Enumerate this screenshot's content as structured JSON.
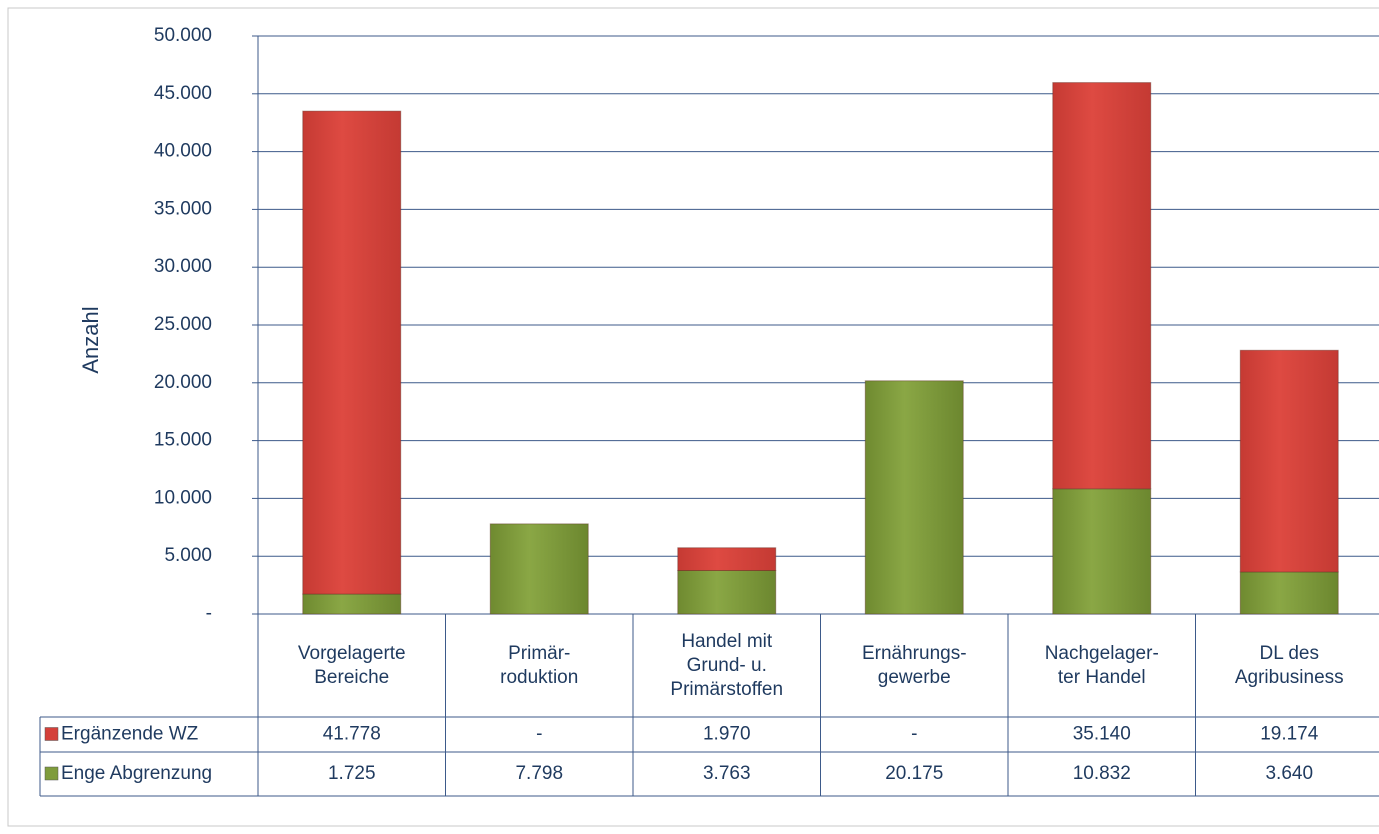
{
  "chart_data": {
    "type": "stacked-bar",
    "y_label": "Anzahl",
    "categories": [
      "Vorgelagerte\nBereiche",
      "Primär-\nroduktion",
      "Handel mit\nGrund- u.\nPrimärstoffen",
      "Ernährungs-\ngewerbe",
      "Nachgelager-\nter Handel",
      "DL des\nAgribusiness"
    ],
    "series": [
      {
        "name": "Enge Abgrenzung",
        "color": "#7f9c3c",
        "values": [
          1725,
          7798,
          3763,
          20175,
          10832,
          3640
        ],
        "value_labels": [
          "1.725",
          "7.798",
          "3.763",
          "20.175",
          "10.832",
          "3.640"
        ]
      },
      {
        "name": "Ergänzende WZ",
        "color": "#d4403a",
        "values": [
          41778,
          0,
          1970,
          0,
          35140,
          19174
        ],
        "value_labels": [
          "41.778",
          "-",
          "1.970",
          "-",
          "35.140",
          "19.174"
        ]
      }
    ],
    "ylim": [
      0,
      50000
    ],
    "yticks": [
      {
        "value": 0,
        "label": "-"
      },
      {
        "value": 5000,
        "label": "5.000"
      },
      {
        "value": 10000,
        "label": "10.000"
      },
      {
        "value": 15000,
        "label": "15.000"
      },
      {
        "value": 20000,
        "label": "20.000"
      },
      {
        "value": 25000,
        "label": "25.000"
      },
      {
        "value": 30000,
        "label": "30.000"
      },
      {
        "value": 35000,
        "label": "35.000"
      },
      {
        "value": 40000,
        "label": "40.000"
      },
      {
        "value": 45000,
        "label": "45.000"
      },
      {
        "value": 50000,
        "label": "50.000"
      }
    ],
    "grid": true
  }
}
